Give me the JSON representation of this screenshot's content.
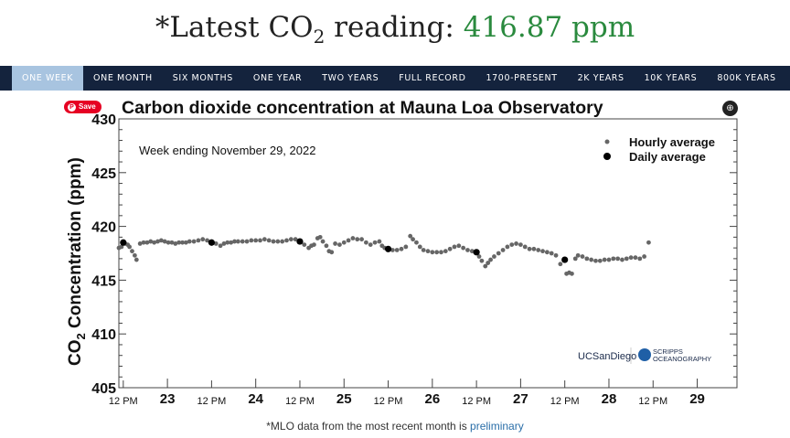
{
  "headline": {
    "prefix": "*Latest CO",
    "sub": "2",
    "middle": " reading: ",
    "value": "416.87 ppm"
  },
  "nav": {
    "tabs": [
      "ONE WEEK",
      "ONE MONTH",
      "SIX MONTHS",
      "ONE YEAR",
      "TWO YEARS",
      "FULL RECORD",
      "1700-PRESENT",
      "2K YEARS",
      "10K YEARS",
      "800K YEARS"
    ],
    "active": 0
  },
  "save_label": "Save",
  "footer": {
    "text": "*MLO data from the most recent month is ",
    "link": "preliminary"
  },
  "logos": {
    "ucsd": "UCSanDiego",
    "scripps": "SCRIPPS",
    "scripps2": "OCEANOGRAPHY"
  },
  "chart_data": {
    "type": "scatter",
    "title": "Carbon dioxide concentration at Mauna Loa Observatory",
    "annotation": "Week ending November 29, 2022",
    "ylabel": "CO2 Concentration (ppm)",
    "ylabel_parts": [
      "CO",
      "2",
      " Concentration (ppm)"
    ],
    "ylim": [
      405,
      430
    ],
    "yticks": [
      405,
      410,
      415,
      420,
      425,
      430
    ],
    "xlim": [
      22.45,
      29.45
    ],
    "xticks": [
      {
        "x": 22.5,
        "label": "12 PM"
      },
      {
        "x": 23,
        "label": "23"
      },
      {
        "x": 23.5,
        "label": "12 PM"
      },
      {
        "x": 24,
        "label": "24"
      },
      {
        "x": 24.5,
        "label": "12 PM"
      },
      {
        "x": 25,
        "label": "25"
      },
      {
        "x": 25.5,
        "label": "12 PM"
      },
      {
        "x": 26,
        "label": "26"
      },
      {
        "x": 26.5,
        "label": "12 PM"
      },
      {
        "x": 27,
        "label": "27"
      },
      {
        "x": 27.5,
        "label": "12 PM"
      },
      {
        "x": 28,
        "label": "28"
      },
      {
        "x": 28.5,
        "label": "12 PM"
      },
      {
        "x": 29,
        "label": "29"
      }
    ],
    "legend": {
      "position": "top-right",
      "entries": [
        "Hourly average",
        "Daily average"
      ]
    },
    "colors": {
      "hourly": "#666666",
      "daily": "#000000"
    },
    "series": [
      {
        "name": "Hourly average",
        "points": [
          [
            22.45,
            418.0
          ],
          [
            22.48,
            418.1
          ],
          [
            22.52,
            418.4
          ],
          [
            22.55,
            418.3
          ],
          [
            22.57,
            418.1
          ],
          [
            22.6,
            417.7
          ],
          [
            22.63,
            417.3
          ],
          [
            22.65,
            416.9
          ],
          [
            22.69,
            418.4
          ],
          [
            22.73,
            418.5
          ],
          [
            22.77,
            418.5
          ],
          [
            22.81,
            418.6
          ],
          [
            22.85,
            418.5
          ],
          [
            22.89,
            418.6
          ],
          [
            22.93,
            418.7
          ],
          [
            22.97,
            418.6
          ],
          [
            23.01,
            418.5
          ],
          [
            23.05,
            418.5
          ],
          [
            23.09,
            418.4
          ],
          [
            23.13,
            418.5
          ],
          [
            23.17,
            418.5
          ],
          [
            23.21,
            418.5
          ],
          [
            23.25,
            418.6
          ],
          [
            23.3,
            418.6
          ],
          [
            23.35,
            418.7
          ],
          [
            23.4,
            418.8
          ],
          [
            23.45,
            418.7
          ],
          [
            23.55,
            418.4
          ],
          [
            23.6,
            418.2
          ],
          [
            23.64,
            418.4
          ],
          [
            23.68,
            418.5
          ],
          [
            23.72,
            418.5
          ],
          [
            23.76,
            418.6
          ],
          [
            23.8,
            418.6
          ],
          [
            23.85,
            418.6
          ],
          [
            23.9,
            418.6
          ],
          [
            23.95,
            418.7
          ],
          [
            24.0,
            418.7
          ],
          [
            24.05,
            418.7
          ],
          [
            24.1,
            418.8
          ],
          [
            24.15,
            418.7
          ],
          [
            24.2,
            418.6
          ],
          [
            24.25,
            418.6
          ],
          [
            24.3,
            418.6
          ],
          [
            24.35,
            418.7
          ],
          [
            24.4,
            418.8
          ],
          [
            24.45,
            418.8
          ],
          [
            24.55,
            418.3
          ],
          [
            24.6,
            418.0
          ],
          [
            24.63,
            418.2
          ],
          [
            24.66,
            418.3
          ],
          [
            24.7,
            418.9
          ],
          [
            24.73,
            419.0
          ],
          [
            24.76,
            418.6
          ],
          [
            24.8,
            418.2
          ],
          [
            24.83,
            417.7
          ],
          [
            24.86,
            417.6
          ],
          [
            24.9,
            418.4
          ],
          [
            24.95,
            418.3
          ],
          [
            25.0,
            418.5
          ],
          [
            25.05,
            418.7
          ],
          [
            25.1,
            418.9
          ],
          [
            25.15,
            418.8
          ],
          [
            25.2,
            418.8
          ],
          [
            25.25,
            418.5
          ],
          [
            25.3,
            418.3
          ],
          [
            25.35,
            418.5
          ],
          [
            25.4,
            418.6
          ],
          [
            25.43,
            418.2
          ],
          [
            25.46,
            418.0
          ],
          [
            25.55,
            417.8
          ],
          [
            25.6,
            417.8
          ],
          [
            25.65,
            417.9
          ],
          [
            25.7,
            418.1
          ],
          [
            25.75,
            419.1
          ],
          [
            25.78,
            418.8
          ],
          [
            25.82,
            418.5
          ],
          [
            25.86,
            418.1
          ],
          [
            25.9,
            417.8
          ],
          [
            25.95,
            417.7
          ],
          [
            26.0,
            417.6
          ],
          [
            26.05,
            417.6
          ],
          [
            26.1,
            417.6
          ],
          [
            26.15,
            417.7
          ],
          [
            26.2,
            417.9
          ],
          [
            26.25,
            418.1
          ],
          [
            26.3,
            418.2
          ],
          [
            26.35,
            418.0
          ],
          [
            26.4,
            417.8
          ],
          [
            26.45,
            417.7
          ],
          [
            26.53,
            417.2
          ],
          [
            26.56,
            416.8
          ],
          [
            26.6,
            416.3
          ],
          [
            26.63,
            416.6
          ],
          [
            26.66,
            416.9
          ],
          [
            26.7,
            417.2
          ],
          [
            26.75,
            417.5
          ],
          [
            26.8,
            417.8
          ],
          [
            26.85,
            418.1
          ],
          [
            26.9,
            418.3
          ],
          [
            26.95,
            418.4
          ],
          [
            27.0,
            418.3
          ],
          [
            27.05,
            418.1
          ],
          [
            27.1,
            417.9
          ],
          [
            27.15,
            417.9
          ],
          [
            27.2,
            417.8
          ],
          [
            27.25,
            417.7
          ],
          [
            27.3,
            417.6
          ],
          [
            27.35,
            417.5
          ],
          [
            27.4,
            417.3
          ],
          [
            27.45,
            416.5
          ],
          [
            27.52,
            415.6
          ],
          [
            27.55,
            415.7
          ],
          [
            27.58,
            415.6
          ],
          [
            27.62,
            417.0
          ],
          [
            27.65,
            417.3
          ],
          [
            27.7,
            417.2
          ],
          [
            27.75,
            417.0
          ],
          [
            27.8,
            416.9
          ],
          [
            27.85,
            416.8
          ],
          [
            27.9,
            416.8
          ],
          [
            27.95,
            416.9
          ],
          [
            28.0,
            416.9
          ],
          [
            28.05,
            417.0
          ],
          [
            28.1,
            417.0
          ],
          [
            28.15,
            416.9
          ],
          [
            28.2,
            417.0
          ],
          [
            28.25,
            417.1
          ],
          [
            28.3,
            417.1
          ],
          [
            28.35,
            417.0
          ],
          [
            28.4,
            417.2
          ],
          [
            28.45,
            418.5
          ]
        ]
      },
      {
        "name": "Daily average",
        "points": [
          [
            22.5,
            418.5
          ],
          [
            23.5,
            418.5
          ],
          [
            24.5,
            418.6
          ],
          [
            25.5,
            417.9
          ],
          [
            26.5,
            417.6
          ],
          [
            27.5,
            416.9
          ]
        ]
      }
    ]
  }
}
